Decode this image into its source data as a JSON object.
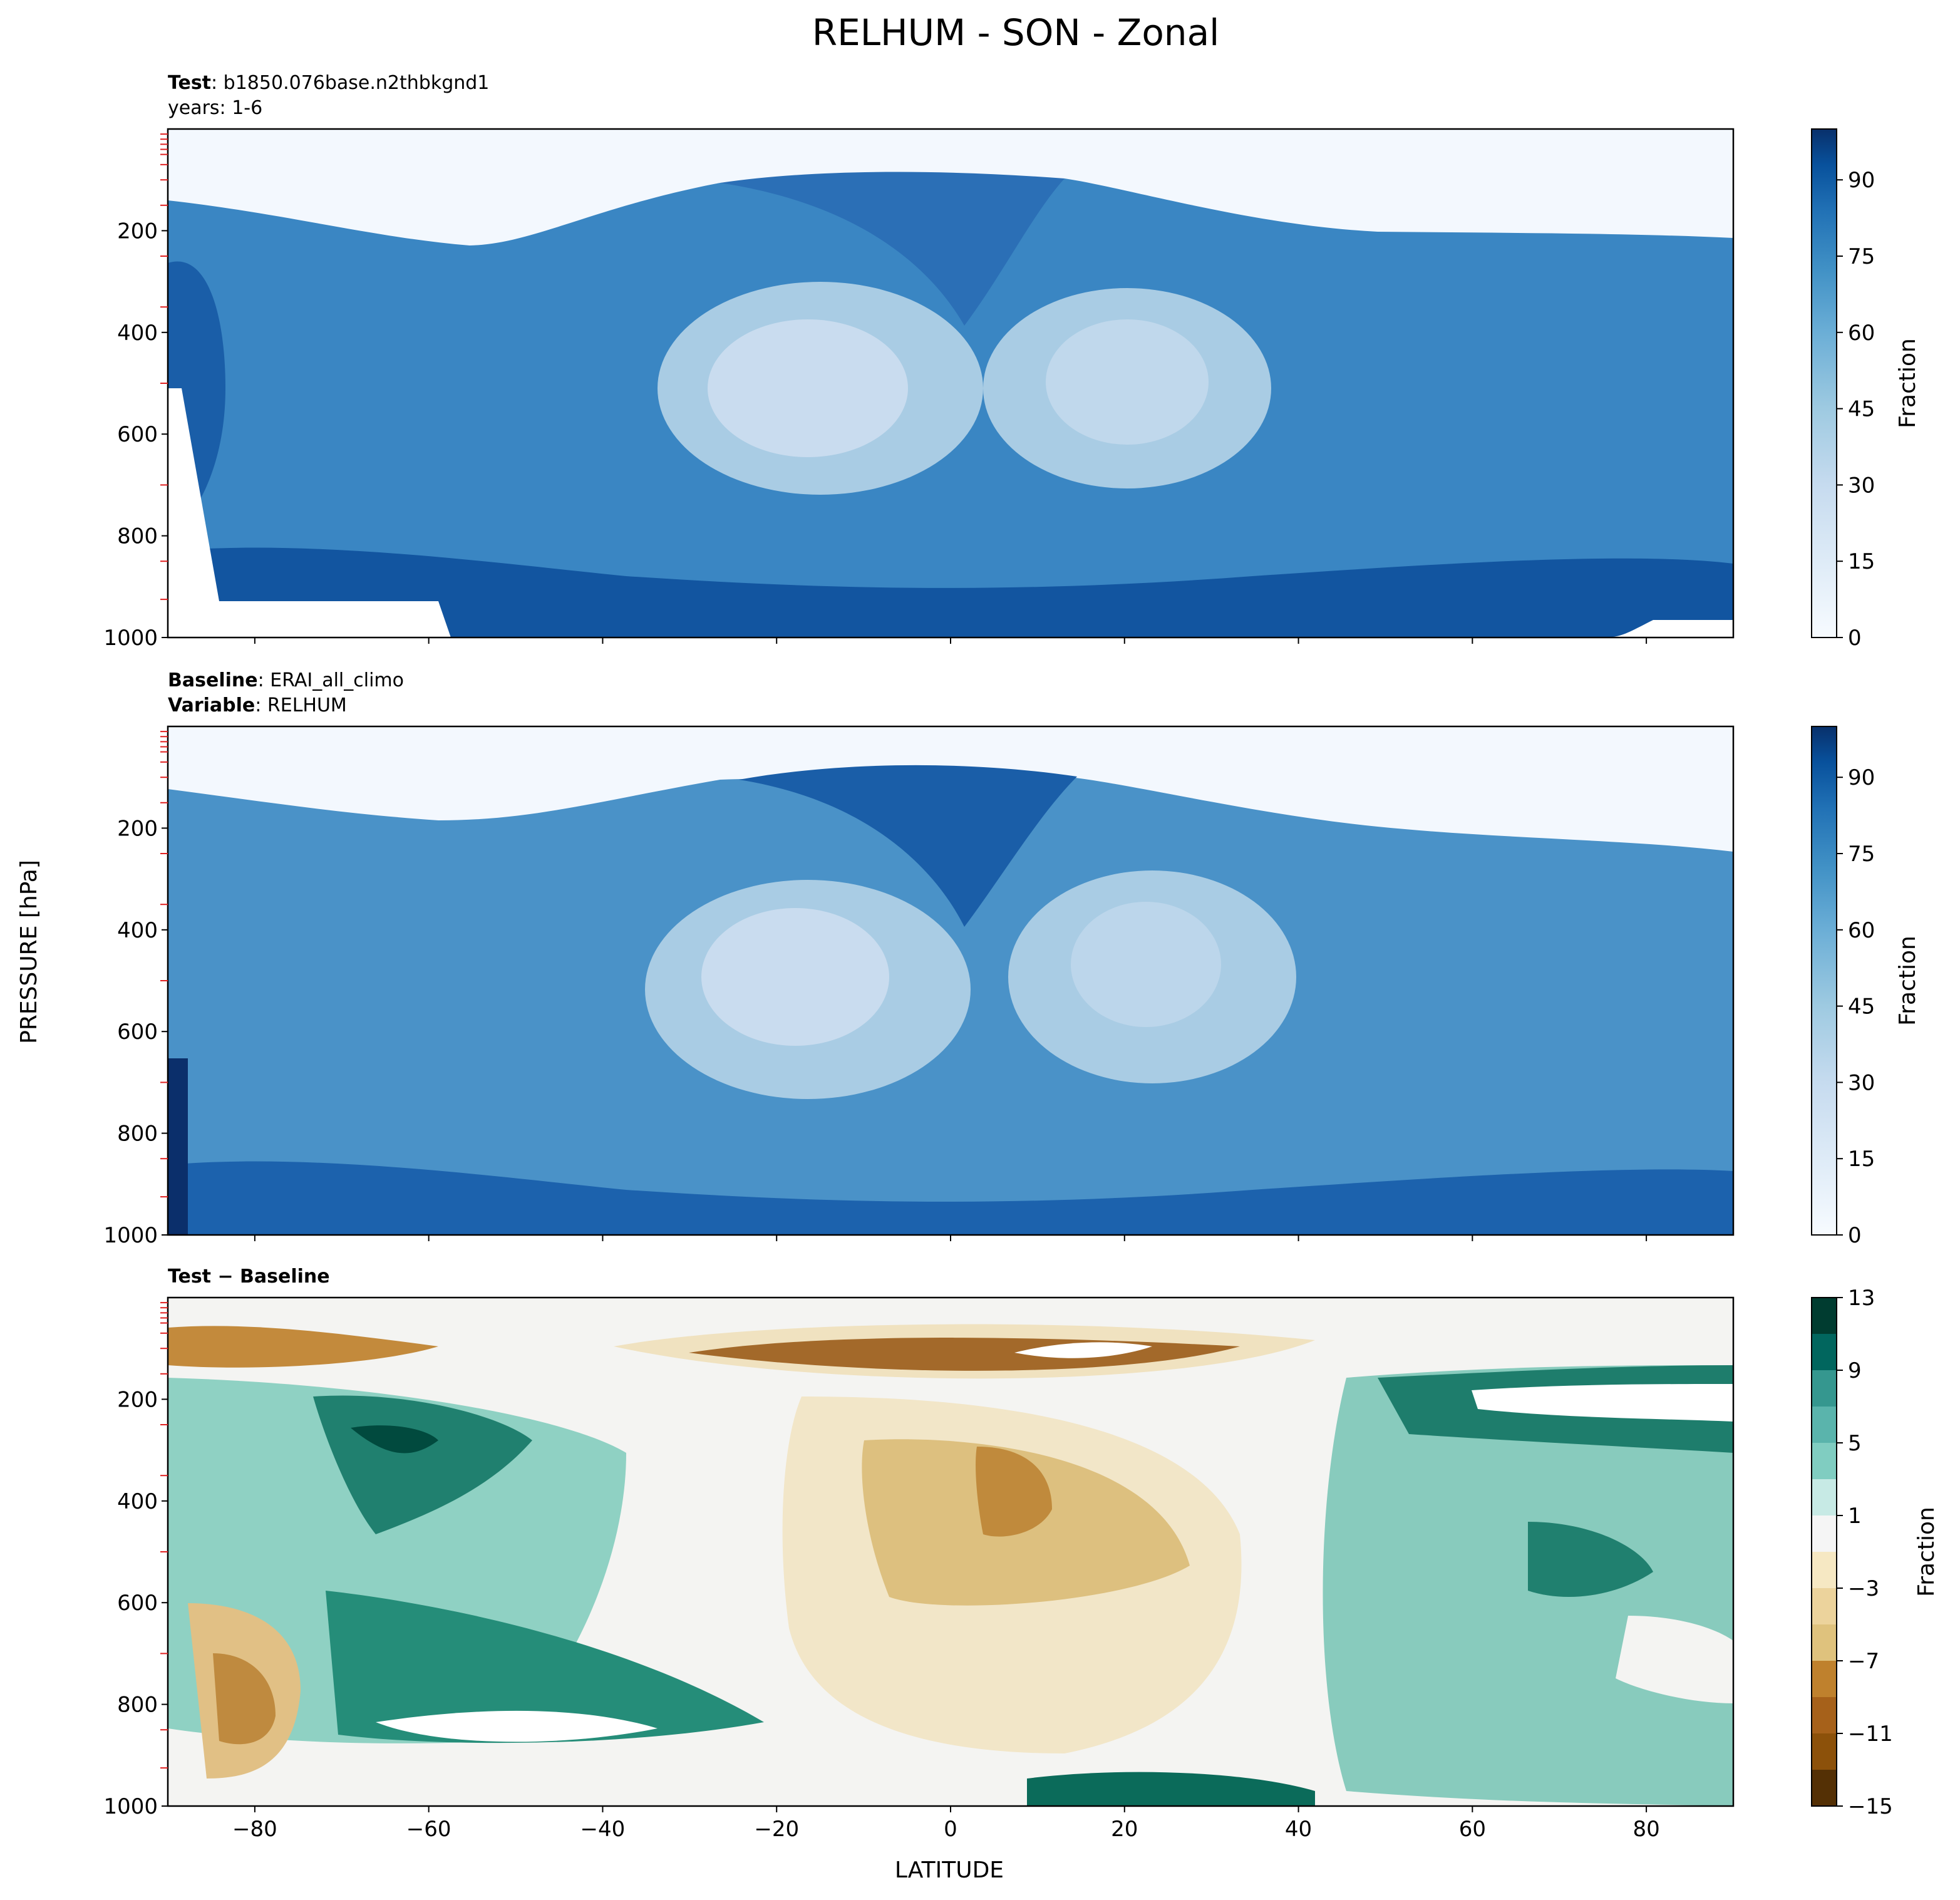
{
  "figure": {
    "title": "RELHUM - SON - Zonal",
    "ylabel": "PRESSURE [hPa]",
    "xlabel": "LATITUDE"
  },
  "chart_data": [
    {
      "type": "heatmap",
      "panel": "test",
      "header": [
        {
          "bold": "Test",
          "text": ": b1850.076base.n2thbkgnd1"
        },
        {
          "bold": "",
          "text": "years: 1-6"
        }
      ],
      "x_ticks": [
        -80,
        -60,
        -40,
        -20,
        0,
        20,
        40,
        60,
        80
      ],
      "xlim": [
        -90,
        90
      ],
      "y_ticks": [
        200,
        400,
        600,
        800,
        1000
      ],
      "ylim": [
        1000,
        0
      ],
      "colormap": "Blues",
      "colorbar": {
        "label": "Fraction",
        "ticks": [
          0,
          15,
          30,
          45,
          60,
          75,
          90
        ],
        "range": [
          0,
          100
        ],
        "levels": 20
      }
    },
    {
      "type": "heatmap",
      "panel": "baseline",
      "header": [
        {
          "bold": "Baseline",
          "text": ": ERAI_all_climo"
        },
        {
          "bold": "Variable",
          "text": ": RELHUM"
        }
      ],
      "x_ticks": [
        -80,
        -60,
        -40,
        -20,
        0,
        20,
        40,
        60,
        80
      ],
      "xlim": [
        -90,
        90
      ],
      "y_ticks": [
        200,
        400,
        600,
        800,
        1000
      ],
      "ylim": [
        1000,
        0
      ],
      "colormap": "Blues",
      "colorbar": {
        "label": "Fraction",
        "ticks": [
          0,
          15,
          30,
          45,
          60,
          75,
          90
        ],
        "range": [
          0,
          100
        ],
        "levels": 20
      }
    },
    {
      "type": "heatmap",
      "panel": "difference",
      "header": [
        {
          "bold": "Test − Baseline",
          "text": ""
        }
      ],
      "x_ticks": [
        -80,
        -60,
        -40,
        -20,
        0,
        20,
        40,
        60,
        80
      ],
      "xlim": [
        -90,
        90
      ],
      "y_ticks": [
        200,
        400,
        600,
        800,
        1000
      ],
      "ylim": [
        1000,
        0
      ],
      "colormap": "BrBG",
      "colorbar": {
        "label": "Fraction",
        "ticks": [
          13,
          9,
          5,
          1,
          -3,
          -7,
          -11,
          -15
        ],
        "range": [
          -15,
          13
        ],
        "levels": 14
      }
    }
  ]
}
